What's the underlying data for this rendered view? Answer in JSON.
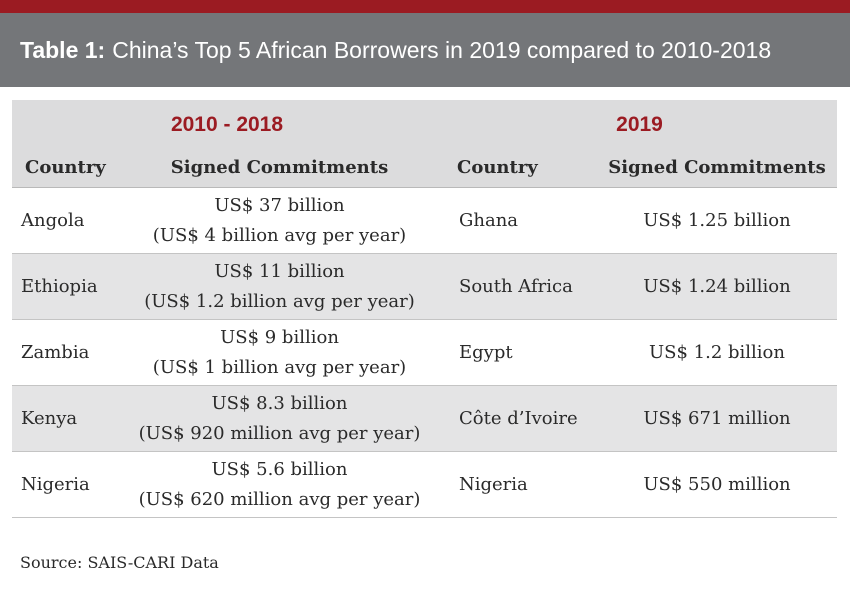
{
  "header": {
    "title_prefix": "Table 1:",
    "title_text": "China’s Top 5 African Borrowers in 2019 compared to 2010-2018"
  },
  "colors": {
    "accent": "#9b1b22",
    "title_bar": "#747679",
    "table_header": "#dcdcdd",
    "row_shade": "#e4e4e5"
  },
  "table": {
    "period_left": "2010 - 2018",
    "period_right": "2019",
    "columns": [
      "Country",
      "Signed Commitments",
      "Country",
      "Signed Commitments"
    ],
    "rows": [
      {
        "country_a": "Angola",
        "commit_a_line1": "US$ 37 billion",
        "commit_a_line2": "(US$ 4 billion avg per year)",
        "country_b": "Ghana",
        "commit_b": "US$ 1.25 billion"
      },
      {
        "country_a": "Ethiopia",
        "commit_a_line1": "US$ 11 billion",
        "commit_a_line2": "(US$ 1.2 billion avg per year)",
        "country_b": "South Africa",
        "commit_b": "US$ 1.24 billion"
      },
      {
        "country_a": "Zambia",
        "commit_a_line1": "US$ 9 billion",
        "commit_a_line2": "(US$ 1 billion avg per year)",
        "country_b": "Egypt",
        "commit_b": "US$ 1.2 billion"
      },
      {
        "country_a": "Kenya",
        "commit_a_line1": "US$ 8.3 billion",
        "commit_a_line2": "(US$ 920 million avg per year)",
        "country_b": "Côte d’Ivoire",
        "commit_b": "US$ 671 million"
      },
      {
        "country_a": "Nigeria",
        "commit_a_line1": "US$ 5.6 billion",
        "commit_a_line2": "(US$ 620 million avg per year)",
        "country_b": "Nigeria",
        "commit_b": "US$ 550 million"
      }
    ]
  },
  "footer": {
    "source": "Source: SAIS-CARI Data"
  }
}
